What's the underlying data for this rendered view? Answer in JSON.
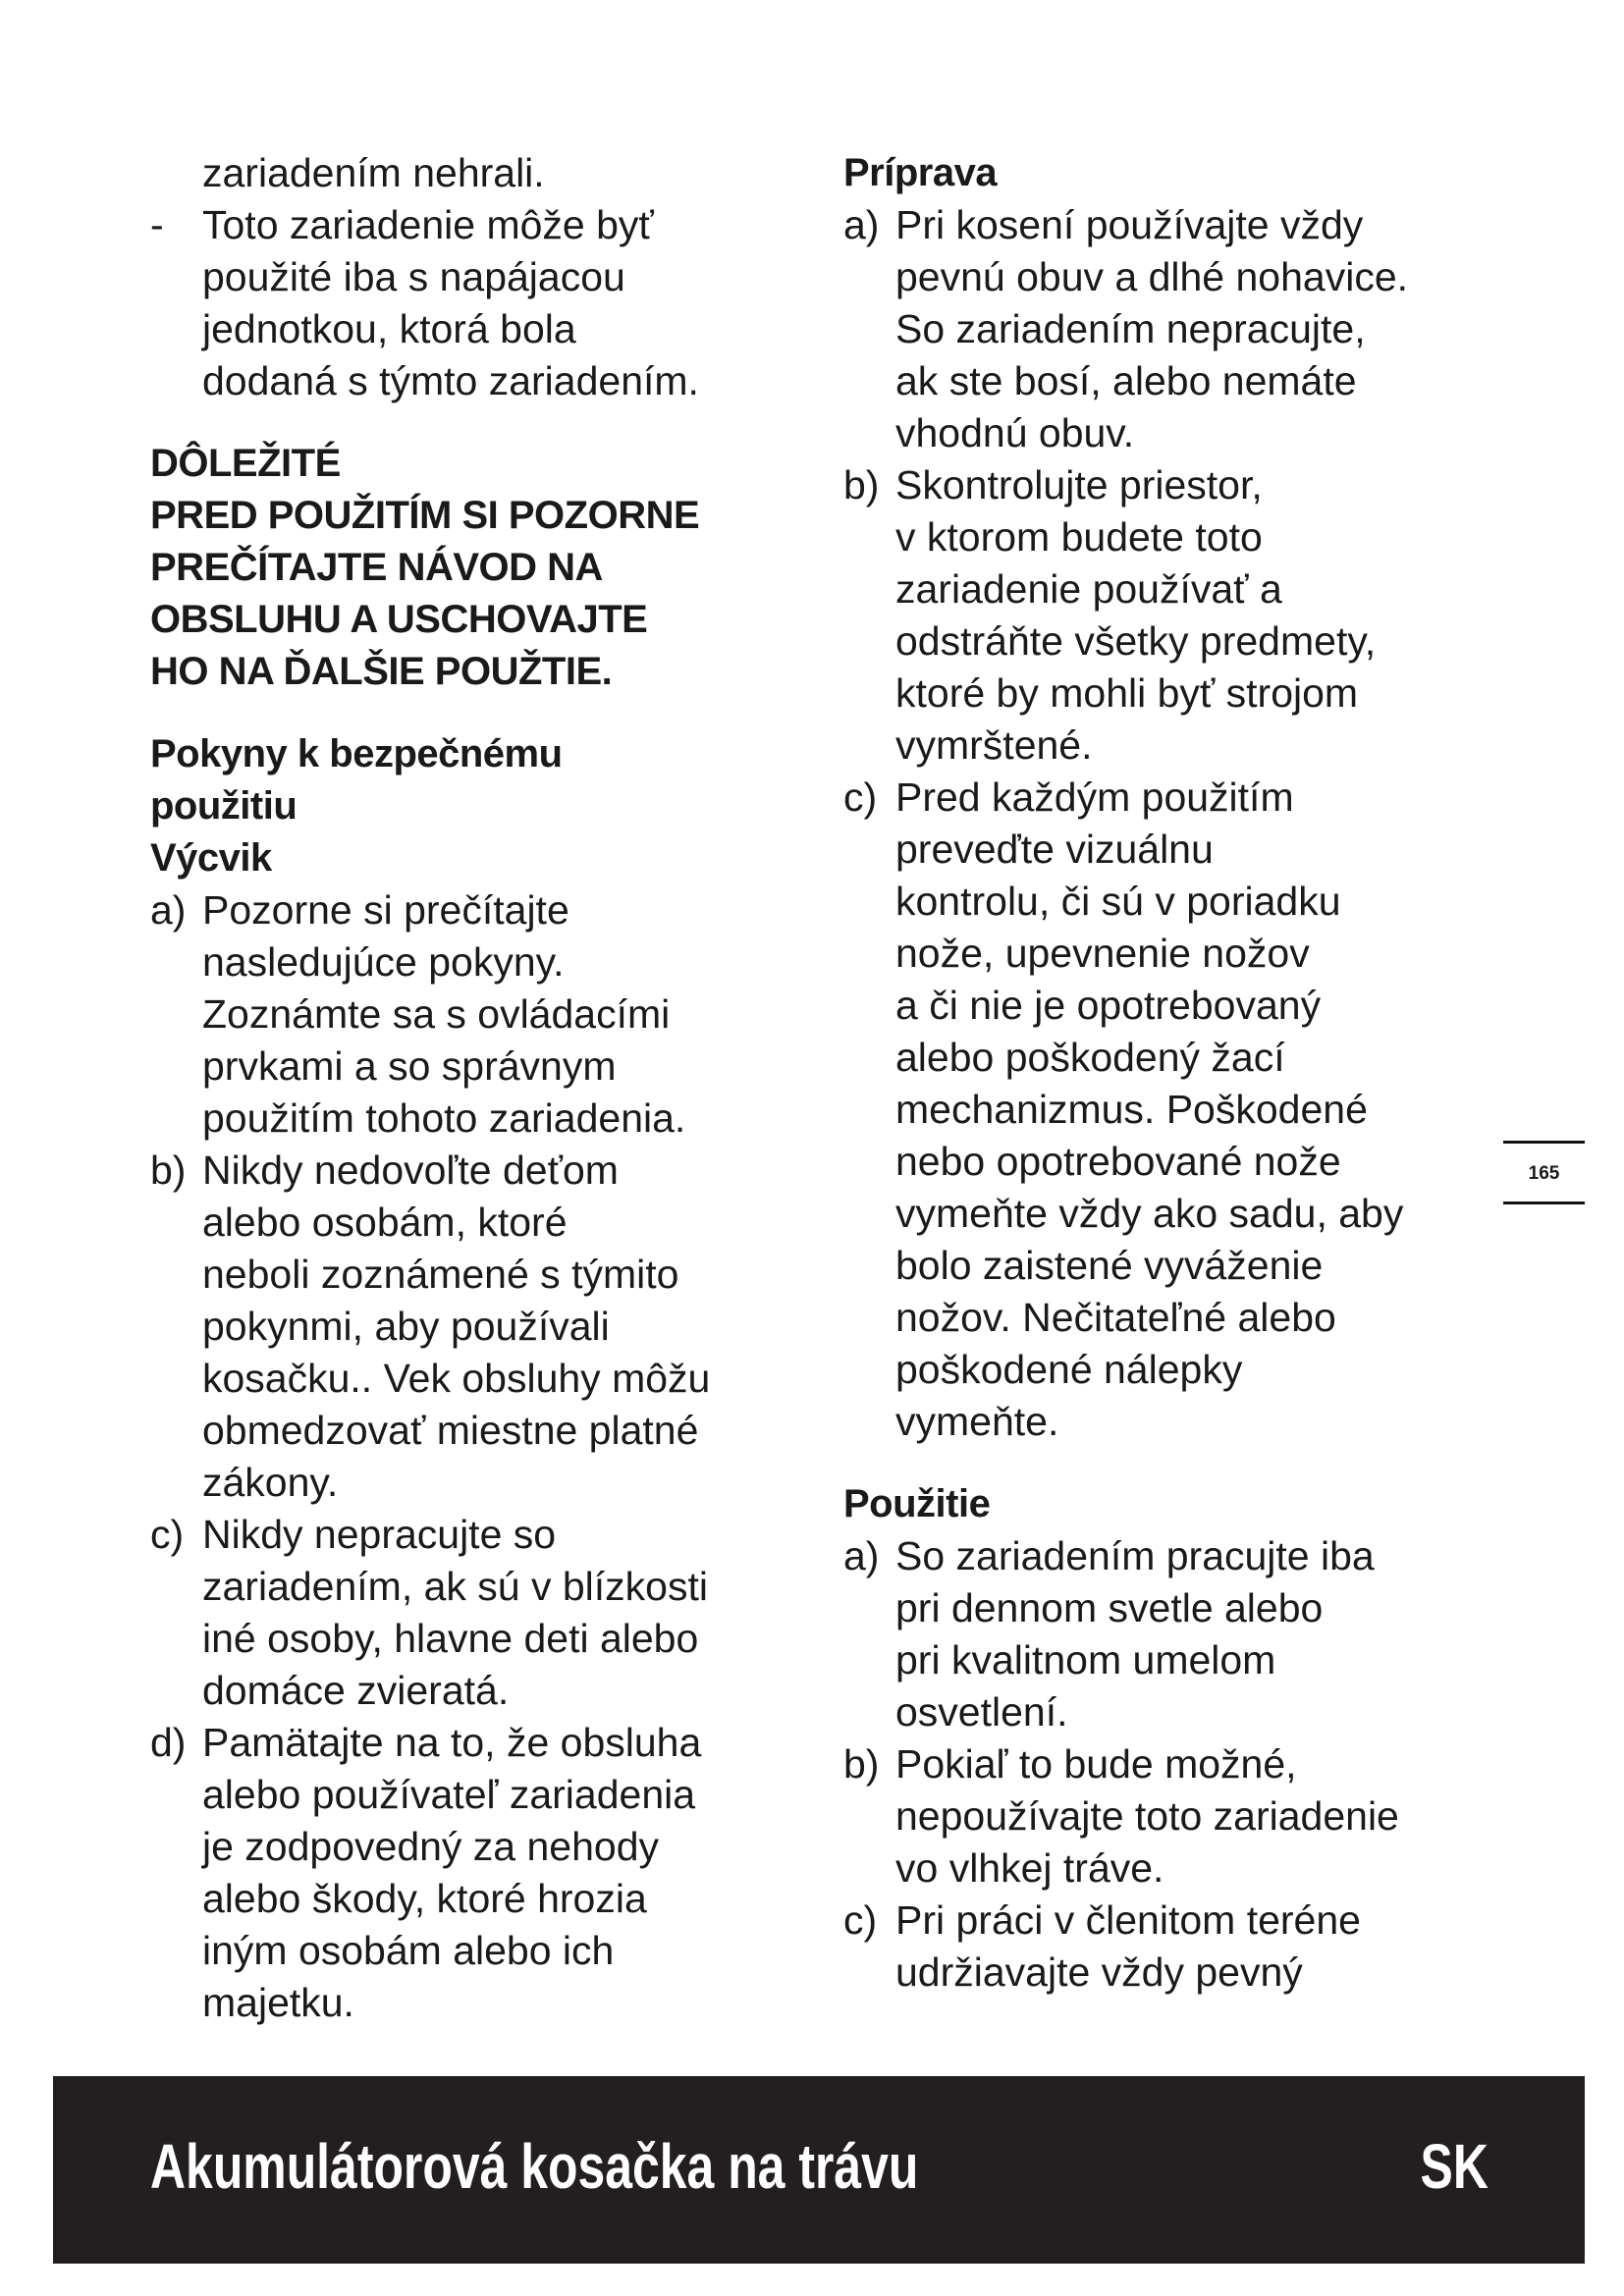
{
  "left": {
    "intro": [
      {
        "label": "",
        "lines": [
          "zariadením nehrali."
        ]
      },
      {
        "label": "-",
        "lines": [
          "Toto zariadenie môže byť",
          "použité iba s napájacou",
          "jednotkou, ktorá bola",
          "dodaná s týmto zariadením."
        ]
      }
    ],
    "warning": [
      "DÔLEŽITÉ",
      "PRED POUŽITÍM SI POZORNE",
      "PREČÍTAJTE NÁVOD NA",
      "OBSLUHU A USCHOVAJTE",
      "HO NA ĎALŠIE POUŽTIE."
    ],
    "section_title": [
      "Pokyny k bezpečnému",
      "použitiu"
    ],
    "subsection_title": "Výcvik",
    "items": [
      {
        "label": "a)",
        "lines": [
          "Pozorne si prečítajte",
          "nasledujúce pokyny.",
          "Zoznámte sa s ovládacími",
          "prvkami a so správnym",
          "použitím tohoto zariadenia."
        ]
      },
      {
        "label": "b)",
        "lines": [
          "Nikdy nedovoľte deťom",
          "alebo osobám, ktoré",
          "neboli zoznámené s týmito",
          "pokynmi, aby používali",
          "kosačku.. Vek obsluhy môžu",
          "obmedzovať miestne platné",
          "zákony."
        ]
      },
      {
        "label": "c)",
        "lines": [
          "Nikdy nepracujte so",
          "zariadením, ak sú v blízkosti",
          "iné osoby, hlavne deti alebo",
          "domáce zvieratá."
        ]
      },
      {
        "label": "d)",
        "lines": [
          "Pamätajte na to, že obsluha",
          "alebo používateľ zariadenia",
          "je zodpovedný za nehody",
          "alebo škody, ktoré hrozia",
          "iným osobám alebo ich",
          "majetku."
        ]
      }
    ]
  },
  "right": {
    "preparation_title": "Príprava",
    "preparation": [
      {
        "label": "a)",
        "lines": [
          "Pri kosení používajte vždy",
          "pevnú obuv a dlhé nohavice.",
          "So zariadením nepracujte,",
          "ak ste bosí, alebo nemáte",
          "vhodnú obuv."
        ]
      },
      {
        "label": "b)",
        "lines": [
          "Skontrolujte priestor,",
          "v ktorom budete toto",
          "zariadenie používať a",
          "odstráňte všetky predmety,",
          "ktoré by mohli byť strojom",
          "vymrštené."
        ]
      },
      {
        "label": "c)",
        "lines": [
          "Pred každým použitím",
          "preveďte vizuálnu",
          "kontrolu, či sú v poriadku",
          "nože, upevnenie nožov",
          "a či nie je opotrebovaný",
          "alebo poškodený žací",
          "mechanizmus. Poškodené",
          "nebo opotrebované nože",
          "vymeňte vždy ako sadu, aby",
          "bolo zaistené vyváženie",
          "nožov. Nečitateľné alebo",
          "poškodené nálepky",
          "vymeňte."
        ]
      }
    ],
    "use_title": "Použitie",
    "use": [
      {
        "label": "a)",
        "lines": [
          "So zariadením pracujte iba",
          "pri dennom svetle alebo",
          "pri kvalitnom umelom",
          "osvetlení."
        ]
      },
      {
        "label": "b)",
        "lines": [
          "Pokiaľ to bude možné,",
          "nepoužívajte toto zariadenie",
          "vo vlhkej tráve."
        ]
      },
      {
        "label": "c)",
        "lines": [
          "Pri práci v členitom teréne",
          "udržiavajte vždy pevný"
        ]
      }
    ]
  },
  "page_number": "165",
  "footer": {
    "title": "Akumulátorová kosačka na trávu",
    "language": "SK"
  }
}
